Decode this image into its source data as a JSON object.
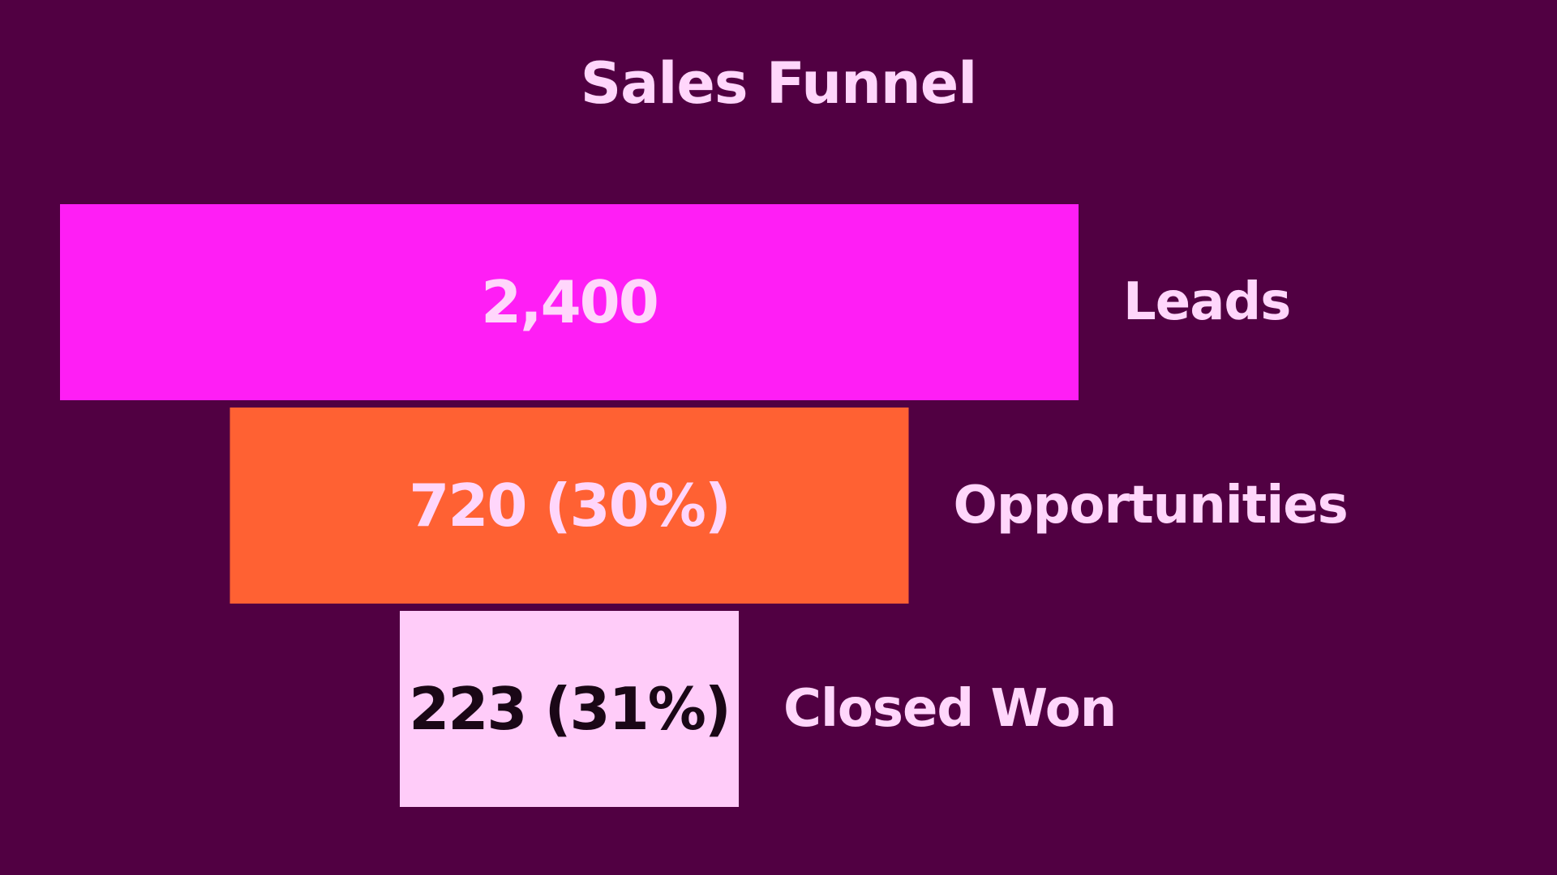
{
  "chart_data": {
    "type": "bar",
    "orientation": "horizontal-funnel",
    "title": "Sales Funnel",
    "categories": [
      "Leads",
      "Opportunities",
      "Closed Won"
    ],
    "values": [
      2400,
      720,
      223
    ],
    "value_labels": [
      "2,400",
      "720 (30%)",
      "223 (31%)"
    ],
    "bar_colors": [
      "#ff1ef5",
      "#ff6133",
      "#ffccf9"
    ],
    "value_label_colors": [
      "#ffd6fb",
      "#ffd6fb",
      "#1a0716"
    ],
    "category_label_color": "#ffd6fb",
    "background_color": "#510042",
    "grid": false,
    "legend": "none"
  }
}
